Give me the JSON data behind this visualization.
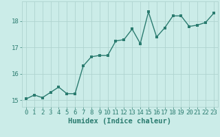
{
  "x": [
    0,
    1,
    2,
    3,
    4,
    5,
    6,
    7,
    8,
    9,
    10,
    11,
    12,
    13,
    14,
    15,
    16,
    17,
    18,
    19,
    20,
    21,
    22,
    23
  ],
  "y": [
    15.05,
    15.2,
    15.1,
    15.3,
    15.5,
    15.25,
    15.25,
    16.3,
    16.65,
    16.7,
    16.7,
    17.25,
    17.3,
    17.7,
    17.15,
    18.35,
    17.4,
    17.75,
    18.2,
    18.2,
    17.8,
    17.85,
    17.95,
    18.3
  ],
  "line_color": "#2a7b6f",
  "bg_color": "#cbece8",
  "grid_color": "#afd4cf",
  "xlabel": "Humidex (Indice chaleur)",
  "ylim": [
    14.75,
    18.75
  ],
  "xlim": [
    -0.5,
    23.5
  ],
  "yticks": [
    15,
    16,
    17,
    18
  ],
  "xticks": [
    0,
    1,
    2,
    3,
    4,
    5,
    6,
    7,
    8,
    9,
    10,
    11,
    12,
    13,
    14,
    15,
    16,
    17,
    18,
    19,
    20,
    21,
    22,
    23
  ],
  "xlabel_fontsize": 7.5,
  "tick_fontsize": 6.5,
  "linewidth": 1.0,
  "marker_size": 2.2
}
